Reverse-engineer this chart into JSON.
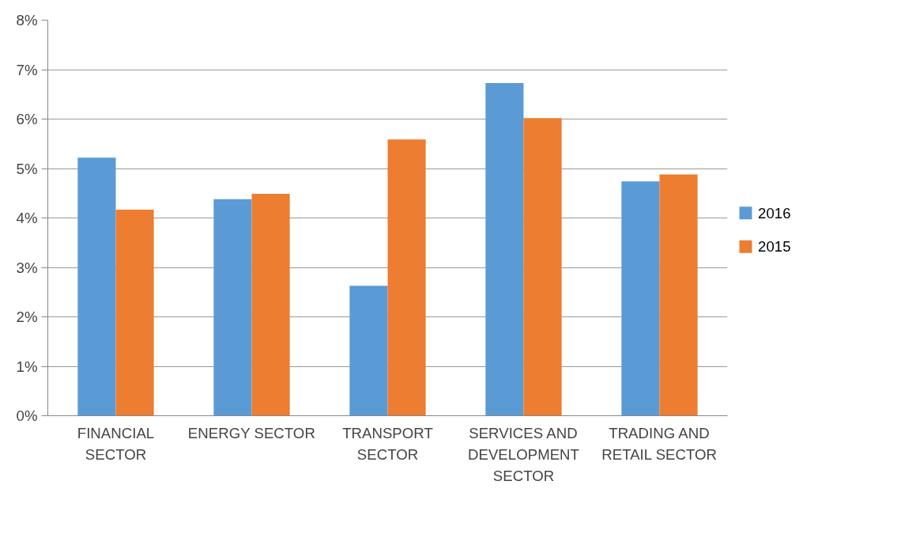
{
  "chart_data": {
    "type": "bar",
    "categories": [
      "FINANCIAL SECTOR",
      "ENERGY SECTOR",
      "TRANSPORT SECTOR",
      "SERVICES AND DEVELOPMENT SECTOR",
      "TRADING AND RETAIL SECTOR"
    ],
    "series": [
      {
        "name": "2016",
        "color": "#5b9bd5",
        "values": [
          5.22,
          4.38,
          2.63,
          6.73,
          4.74
        ]
      },
      {
        "name": "2015",
        "color": "#ed7d31",
        "values": [
          4.17,
          4.49,
          5.59,
          6.02,
          4.88
        ]
      }
    ],
    "ylim": [
      0,
      8
    ],
    "yticks": [
      {
        "value": 0,
        "label": "0%"
      },
      {
        "value": 1,
        "label": "1%"
      },
      {
        "value": 2,
        "label": "2%"
      },
      {
        "value": 3,
        "label": "3%"
      },
      {
        "value": 4,
        "label": "4%"
      },
      {
        "value": 5,
        "label": "5%"
      },
      {
        "value": 6,
        "label": "6%"
      },
      {
        "value": 7,
        "label": "7%"
      },
      {
        "value": 8,
        "label": "8%"
      }
    ],
    "grid": "y",
    "legend": "right"
  }
}
